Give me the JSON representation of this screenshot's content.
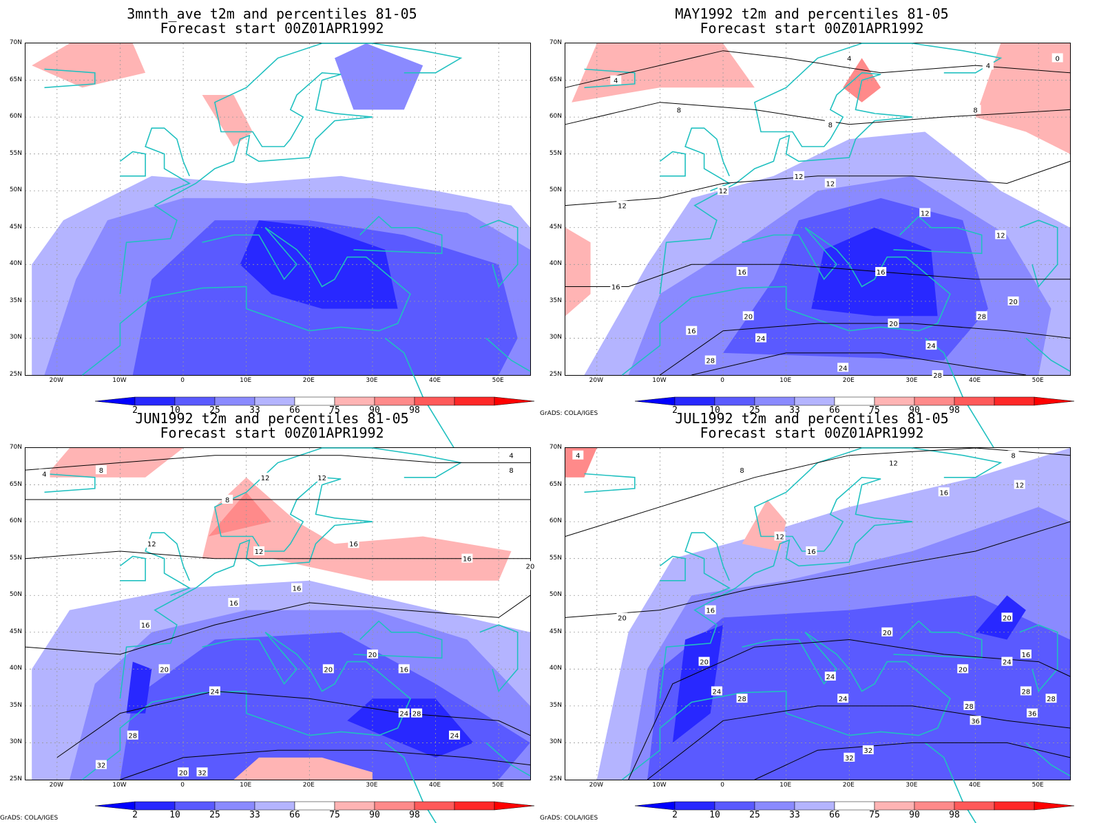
{
  "panels": [
    {
      "title_line1": "3mnth_ave t2m and percentiles 81-05",
      "title_line2": "Forecast start 00Z01APR1992",
      "credit": "",
      "contour_labels": []
    },
    {
      "title_line1": "MAY1992 t2m and percentiles 81-05",
      "title_line2": "Forecast start 00Z01APR1992",
      "credit": "GrADS: COLA/IGES",
      "contour_labels": [
        "4",
        "4",
        "4",
        "8",
        "8",
        "8",
        "12",
        "12",
        "12",
        "12",
        "12",
        "12",
        "16",
        "16",
        "16",
        "16",
        "20",
        "20",
        "20",
        "24",
        "24",
        "24",
        "28",
        "28",
        "28",
        "0"
      ]
    },
    {
      "title_line1": "JUN1992 t2m and percentiles 81-05",
      "title_line2": "Forecast start 00Z01APR1992",
      "credit": "GrADS: COLA/IGES",
      "contour_labels": [
        "4",
        "4",
        "8",
        "8",
        "8",
        "12",
        "12",
        "12",
        "12",
        "16",
        "16",
        "16",
        "16",
        "16",
        "20",
        "20",
        "20",
        "20",
        "24",
        "24",
        "24",
        "28",
        "28",
        "32",
        "32",
        "20",
        "16"
      ]
    },
    {
      "title_line1": "JUL1992 t2m and percentiles 81-05",
      "title_line2": "Forecast start 00Z01APR1992",
      "credit": "GrADS: COLA/IGES",
      "contour_labels": [
        "4",
        "8",
        "8",
        "12",
        "12",
        "12",
        "16",
        "16",
        "16",
        "20",
        "20",
        "20",
        "20",
        "20",
        "24",
        "24",
        "24",
        "24",
        "28",
        "28",
        "28",
        "32",
        "32",
        "36",
        "36",
        "16",
        "28"
      ]
    }
  ],
  "latitude_labels": [
    "70N",
    "65N",
    "60N",
    "55N",
    "50N",
    "45N",
    "40N",
    "35N",
    "30N",
    "25N"
  ],
  "longitude_labels": [
    "20W",
    "10W",
    "0",
    "10E",
    "20E",
    "30E",
    "40E",
    "50E"
  ],
  "colorbar": {
    "labels": [
      "2",
      "10",
      "25",
      "33",
      "66",
      "75",
      "90",
      "98"
    ],
    "colors": [
      "#0000ff",
      "#2828ff",
      "#5a5aff",
      "#8a8aff",
      "#b4b4ff",
      "#ffffff",
      "#ffb4b4",
      "#ff8a8a",
      "#ff5a5a",
      "#ff2828",
      "#ff0000"
    ]
  },
  "colors": {
    "coastline": "#20c0c0",
    "contour": "#000000",
    "blue_light": "#b4b4ff",
    "blue_mid": "#8a8aff",
    "blue_dark": "#5a5aff",
    "blue_deep": "#2828ff",
    "red_light": "#ffb4b4",
    "red_mid": "#ff8a8a"
  }
}
